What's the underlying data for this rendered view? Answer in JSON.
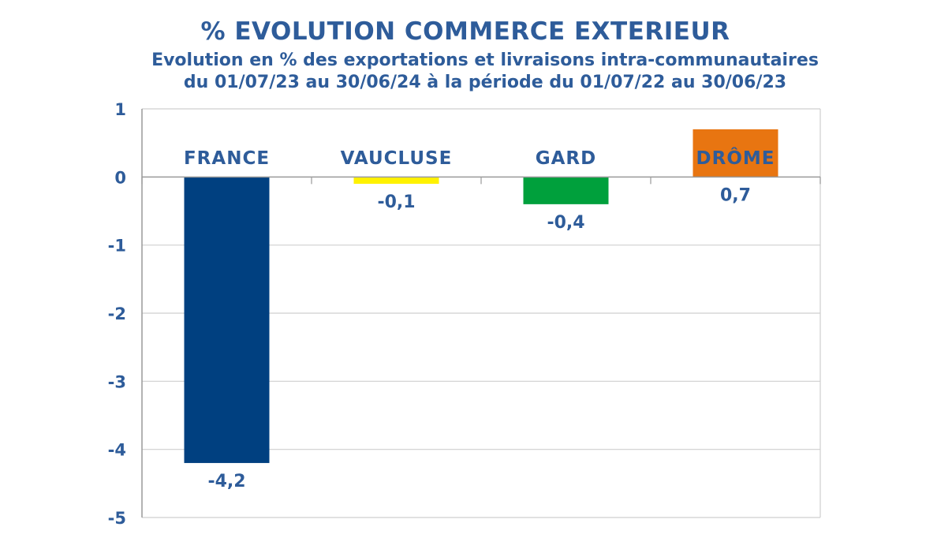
{
  "chart_data": {
    "type": "bar",
    "title": "% EVOLUTION COMMERCE EXTERIEUR",
    "subtitle": [
      "Evolution en % des exportations et livraisons intra-communautaires",
      "du 01/07/23 au 30/06/24 à la période du 01/07/22 au 30/06/23"
    ],
    "xlabel": "",
    "ylabel": "",
    "categories": [
      "FRANCE",
      "VAUCLUSE",
      "GARD",
      "DRÔME"
    ],
    "values": [
      -4.2,
      -0.1,
      -0.4,
      0.7
    ],
    "data_labels": [
      "-4,2",
      "-0,1",
      "-0,4",
      "0,7"
    ],
    "colors": [
      "#004080",
      "#FFF200",
      "#00A03C",
      "#E87511"
    ],
    "ylim": [
      -5,
      1
    ],
    "yticks": [
      1,
      0,
      -1,
      -2,
      -3,
      -4,
      -5
    ],
    "ytick_labels": [
      "1",
      "0",
      "-1",
      "-2",
      "-3",
      "-4",
      "-5"
    ],
    "grid": true,
    "legend": "none"
  }
}
